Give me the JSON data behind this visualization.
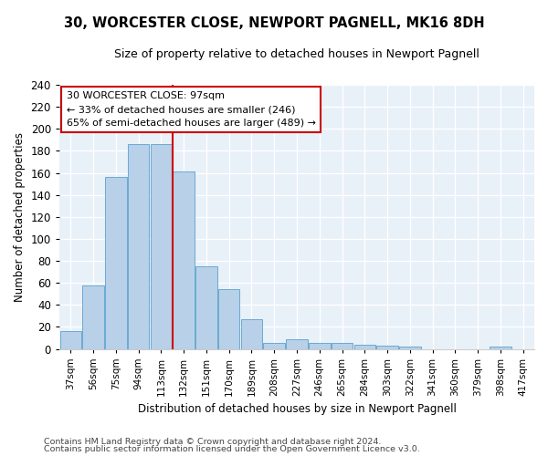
{
  "title1": "30, WORCESTER CLOSE, NEWPORT PAGNELL, MK16 8DH",
  "title2": "Size of property relative to detached houses in Newport Pagnell",
  "xlabel": "Distribution of detached houses by size in Newport Pagnell",
  "ylabel": "Number of detached properties",
  "bar_color": "#b8d0e8",
  "bar_edge_color": "#6aaad4",
  "bg_color": "#e8f0f8",
  "grid_color": "#ffffff",
  "annotation_box_color": "#cc0000",
  "vline_color": "#cc0000",
  "categories": [
    "37sqm",
    "56sqm",
    "75sqm",
    "94sqm",
    "113sqm",
    "132sqm",
    "151sqm",
    "170sqm",
    "189sqm",
    "208sqm",
    "227sqm",
    "246sqm",
    "265sqm",
    "284sqm",
    "303sqm",
    "322sqm",
    "341sqm",
    "360sqm",
    "379sqm",
    "398sqm",
    "417sqm"
  ],
  "values": [
    16,
    58,
    156,
    186,
    186,
    161,
    75,
    54,
    27,
    5,
    9,
    5,
    5,
    4,
    3,
    2,
    0,
    0,
    0,
    2,
    0
  ],
  "property_label": "30 WORCESTER CLOSE: 97sqm",
  "pct_smaller": 33,
  "count_smaller": 246,
  "pct_larger_semi": 65,
  "count_larger_semi": 489,
  "vline_x_index": 4.5,
  "ylim": [
    0,
    240
  ],
  "yticks": [
    0,
    20,
    40,
    60,
    80,
    100,
    120,
    140,
    160,
    180,
    200,
    220,
    240
  ],
  "footer1": "Contains HM Land Registry data © Crown copyright and database right 2024.",
  "footer2": "Contains public sector information licensed under the Open Government Licence v3.0."
}
